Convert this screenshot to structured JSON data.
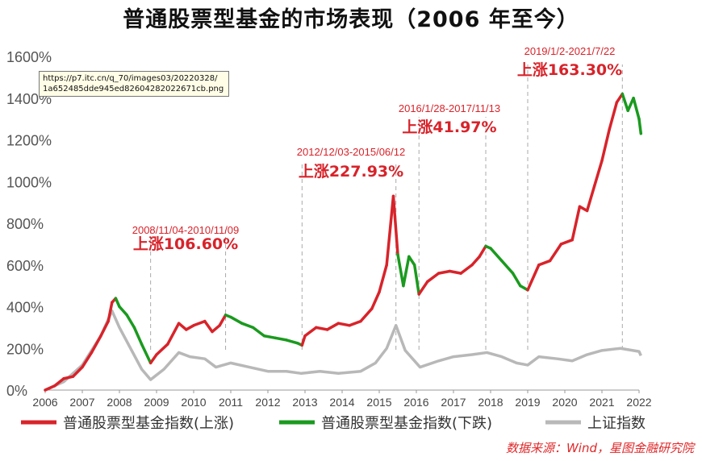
{
  "title": "普通股票型基金的市场表现（2006 年至今）",
  "tooltip": {
    "line1": "https://p7.itc.cn/q_70/images03/20220328/",
    "line2": "1a652485dde945ed82604282022671cb.png"
  },
  "source_note": "数据来源：Wind，星图金融研究院",
  "colors": {
    "up": "#d8232a",
    "down": "#1a9a1e",
    "index": "#b8b8b8",
    "annot": "#d8232a",
    "axis": "#666666"
  },
  "chart_data": {
    "type": "line",
    "title": "普通股票型基金的市场表现（2006 年至今）",
    "xlabel": "",
    "ylabel": "",
    "xlim": [
      2006,
      2022
    ],
    "ylim": [
      0,
      1600
    ],
    "x_ticks": [
      "2006",
      "2007",
      "2008",
      "2009",
      "2010",
      "2011",
      "2012",
      "2013",
      "2014",
      "2015",
      "2016",
      "2017",
      "2018",
      "2019",
      "2020",
      "2021",
      "2022"
    ],
    "y_ticks": [
      "0%",
      "200%",
      "400%",
      "600%",
      "800%",
      "1000%",
      "1200%",
      "1400%",
      "1600%"
    ],
    "grid": false,
    "legend_position": "bottom",
    "legend": [
      {
        "label": "普通股票型基金指数(上涨)",
        "color": "#d8232a"
      },
      {
        "label": "普通股票型基金指数(下跌)",
        "color": "#1a9a1e"
      },
      {
        "label": "上证指数",
        "color": "#b8b8b8"
      }
    ],
    "fund_index": [
      [
        2006.0,
        0
      ],
      [
        2006.25,
        20
      ],
      [
        2006.5,
        55
      ],
      [
        2006.75,
        65
      ],
      [
        2007.0,
        110
      ],
      [
        2007.25,
        180
      ],
      [
        2007.5,
        260
      ],
      [
        2007.7,
        330
      ],
      [
        2007.8,
        420
      ],
      [
        2007.9,
        440
      ],
      [
        2008.0,
        400
      ],
      [
        2008.2,
        360
      ],
      [
        2008.4,
        300
      ],
      [
        2008.6,
        220
      ],
      [
        2008.84,
        130
      ],
      [
        2009.0,
        170
      ],
      [
        2009.3,
        220
      ],
      [
        2009.6,
        320
      ],
      [
        2009.8,
        290
      ],
      [
        2010.0,
        310
      ],
      [
        2010.3,
        330
      ],
      [
        2010.5,
        280
      ],
      [
        2010.7,
        310
      ],
      [
        2010.86,
        360
      ],
      [
        2011.0,
        350
      ],
      [
        2011.3,
        320
      ],
      [
        2011.6,
        300
      ],
      [
        2011.9,
        260
      ],
      [
        2012.2,
        250
      ],
      [
        2012.5,
        240
      ],
      [
        2012.8,
        225
      ],
      [
        2012.92,
        215
      ],
      [
        2013.0,
        260
      ],
      [
        2013.3,
        300
      ],
      [
        2013.6,
        290
      ],
      [
        2013.9,
        320
      ],
      [
        2014.2,
        310
      ],
      [
        2014.5,
        330
      ],
      [
        2014.8,
        390
      ],
      [
        2015.0,
        470
      ],
      [
        2015.2,
        600
      ],
      [
        2015.38,
        930
      ],
      [
        2015.5,
        650
      ],
      [
        2015.65,
        500
      ],
      [
        2015.8,
        640
      ],
      [
        2015.95,
        600
      ],
      [
        2016.07,
        460
      ],
      [
        2016.3,
        520
      ],
      [
        2016.6,
        560
      ],
      [
        2016.9,
        570
      ],
      [
        2017.2,
        560
      ],
      [
        2017.5,
        600
      ],
      [
        2017.7,
        640
      ],
      [
        2017.87,
        690
      ],
      [
        2018.0,
        680
      ],
      [
        2018.3,
        620
      ],
      [
        2018.6,
        560
      ],
      [
        2018.8,
        500
      ],
      [
        2019.0,
        480
      ],
      [
        2019.3,
        600
      ],
      [
        2019.6,
        620
      ],
      [
        2019.9,
        700
      ],
      [
        2020.2,
        720
      ],
      [
        2020.4,
        880
      ],
      [
        2020.6,
        860
      ],
      [
        2020.8,
        980
      ],
      [
        2021.0,
        1100
      ],
      [
        2021.2,
        1250
      ],
      [
        2021.4,
        1380
      ],
      [
        2021.55,
        1420
      ],
      [
        2021.7,
        1340
      ],
      [
        2021.85,
        1400
      ],
      [
        2022.0,
        1300
      ],
      [
        2022.05,
        1230
      ]
    ],
    "shanghai_index": [
      [
        2006.0,
        0
      ],
      [
        2006.5,
        40
      ],
      [
        2007.0,
        120
      ],
      [
        2007.5,
        260
      ],
      [
        2007.8,
        380
      ],
      [
        2008.0,
        300
      ],
      [
        2008.3,
        200
      ],
      [
        2008.6,
        100
      ],
      [
        2008.84,
        50
      ],
      [
        2009.2,
        100
      ],
      [
        2009.6,
        180
      ],
      [
        2009.9,
        160
      ],
      [
        2010.3,
        150
      ],
      [
        2010.6,
        110
      ],
      [
        2011.0,
        130
      ],
      [
        2011.5,
        110
      ],
      [
        2012.0,
        90
      ],
      [
        2012.5,
        90
      ],
      [
        2012.9,
        80
      ],
      [
        2013.4,
        90
      ],
      [
        2013.9,
        80
      ],
      [
        2014.5,
        90
      ],
      [
        2014.9,
        130
      ],
      [
        2015.2,
        200
      ],
      [
        2015.45,
        310
      ],
      [
        2015.7,
        190
      ],
      [
        2015.95,
        140
      ],
      [
        2016.1,
        110
      ],
      [
        2016.6,
        140
      ],
      [
        2017.0,
        160
      ],
      [
        2017.5,
        170
      ],
      [
        2017.9,
        180
      ],
      [
        2018.3,
        160
      ],
      [
        2018.7,
        130
      ],
      [
        2019.0,
        120
      ],
      [
        2019.3,
        160
      ],
      [
        2019.8,
        150
      ],
      [
        2020.2,
        140
      ],
      [
        2020.6,
        170
      ],
      [
        2021.0,
        190
      ],
      [
        2021.5,
        200
      ],
      [
        2022.0,
        185
      ],
      [
        2022.05,
        165
      ]
    ],
    "periods": [
      {
        "range": "2008/11/04-2010/11/09",
        "change": "上涨106.60%",
        "start": 2008.84,
        "end": 2010.86
      },
      {
        "range": "2012/12/03-2015/06/12",
        "change": "上涨227.93%",
        "start": 2012.92,
        "end": 2015.45
      },
      {
        "range": "2016/1/28-2017/11/13",
        "change": "上涨41.97%",
        "start": 2016.07,
        "end": 2017.87
      },
      {
        "range": "2019/1/2-2021/7/22",
        "change": "上涨163.30%",
        "start": 2019.0,
        "end": 2021.55
      }
    ]
  }
}
